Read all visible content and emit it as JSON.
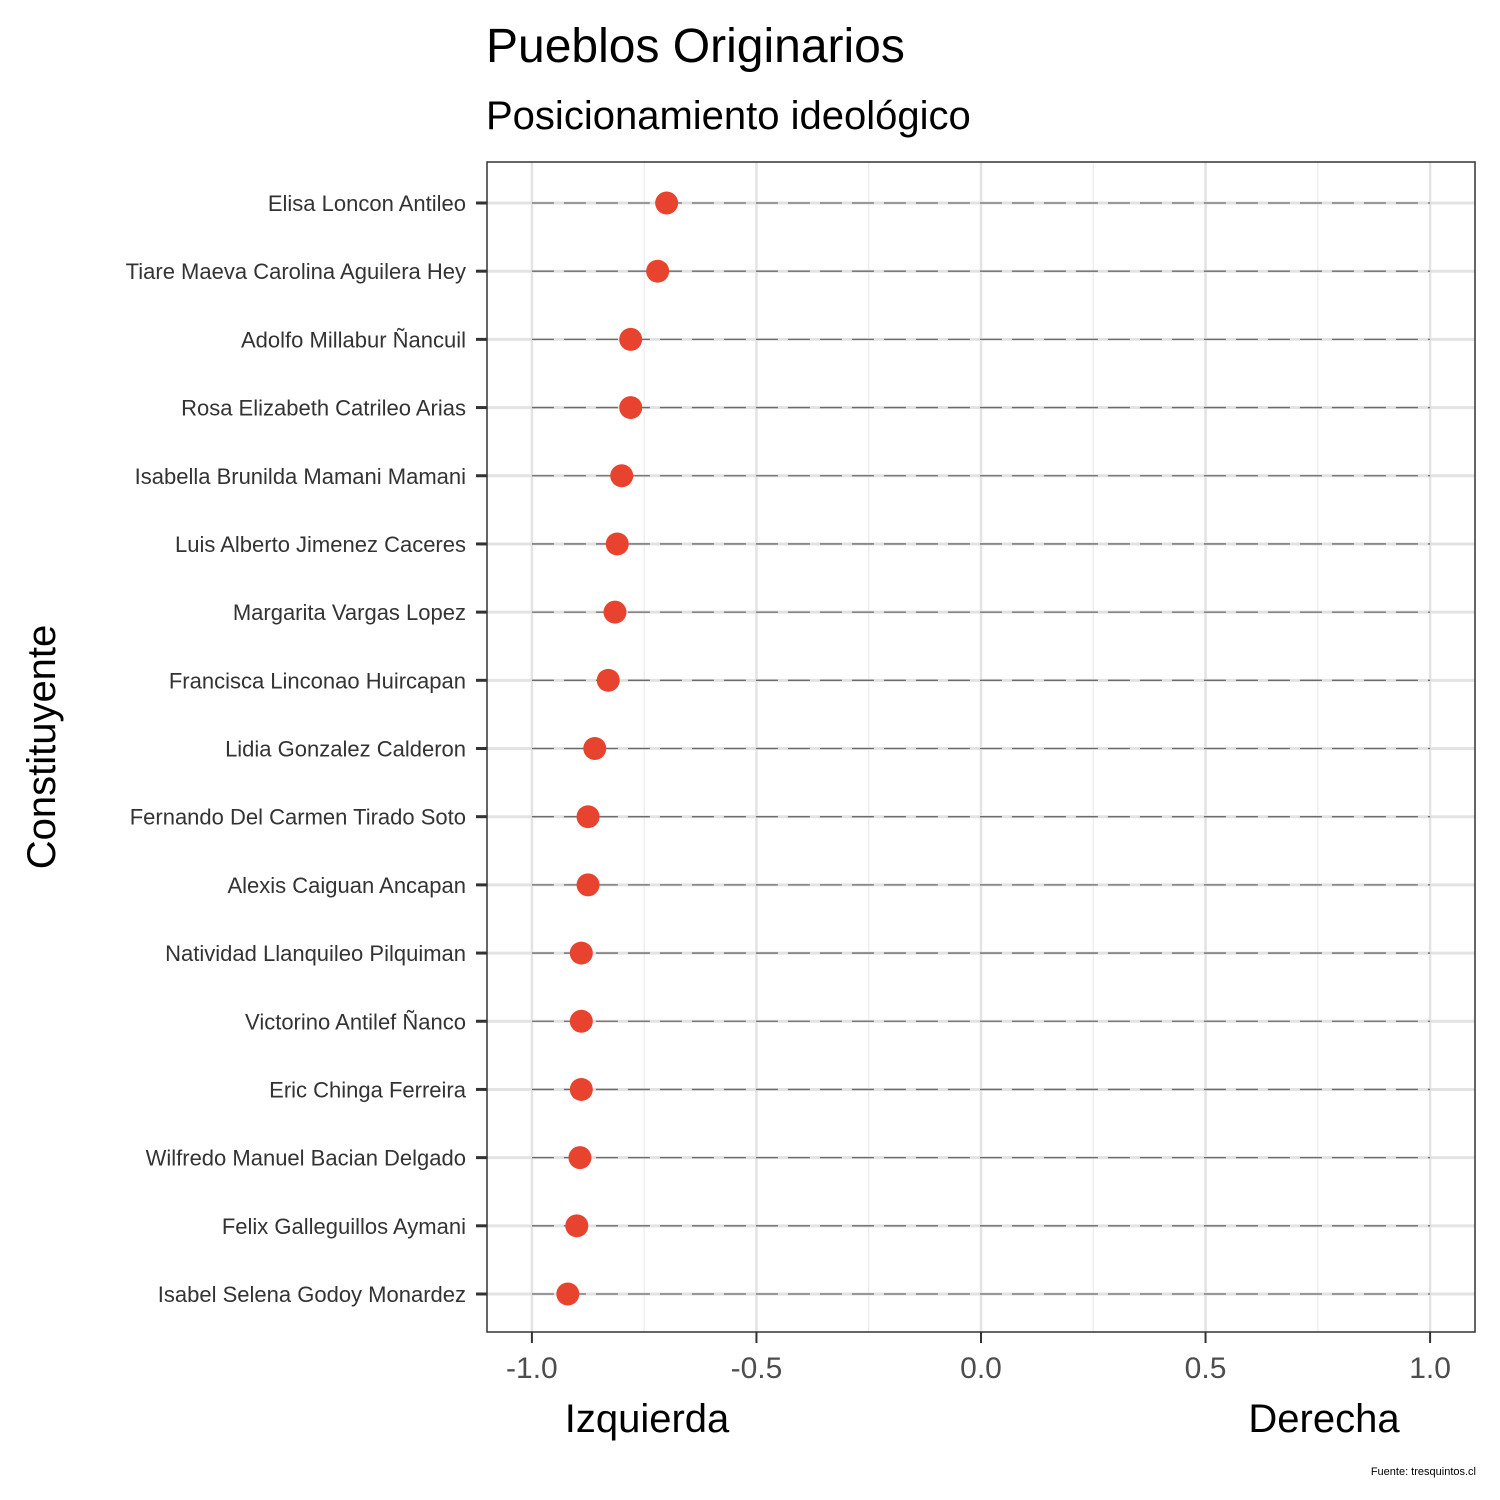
{
  "chart_data": {
    "type": "scatter",
    "title": "Pueblos Originarios",
    "subtitle": "Posicionamiento ideológico",
    "ylabel": "Constituyente",
    "xlabel_left": "Izquierda",
    "xlabel_right": "Derecha",
    "caption": "Fuente: tresquintos.cl",
    "xlim": [
      -1.1,
      1.1
    ],
    "x_ticks": [
      -1.0,
      -0.5,
      0.0,
      0.5,
      1.0
    ],
    "x_tick_labels": [
      "-1.0",
      "-0.5",
      "0.0",
      "0.5",
      "1.0"
    ],
    "grid": true,
    "point_color": "#e8432f",
    "categories": [
      "Elisa Loncon Antileo",
      "Tiare Maeva Carolina Aguilera Hey",
      "Adolfo Millabur Ñancuil",
      "Rosa Elizabeth Catrileo Arias",
      "Isabella Brunilda Mamani Mamani",
      "Luis Alberto Jimenez Caceres",
      "Margarita Vargas Lopez",
      "Francisca Linconao Huircapan",
      "Lidia Gonzalez Calderon",
      "Fernando Del Carmen Tirado Soto",
      "Alexis Caiguan Ancapan",
      "Natividad Llanquileo Pilquiman",
      "Victorino Antilef Ñanco",
      "Eric Chinga Ferreira",
      "Wilfredo Manuel Bacian Delgado",
      "Felix Galleguillos Aymani",
      "Isabel Selena Godoy Monardez"
    ],
    "values": [
      -0.7,
      -0.72,
      -0.78,
      -0.78,
      -0.8,
      -0.81,
      -0.815,
      -0.83,
      -0.86,
      -0.875,
      -0.875,
      -0.89,
      -0.89,
      -0.89,
      -0.893,
      -0.9,
      -0.92
    ]
  }
}
